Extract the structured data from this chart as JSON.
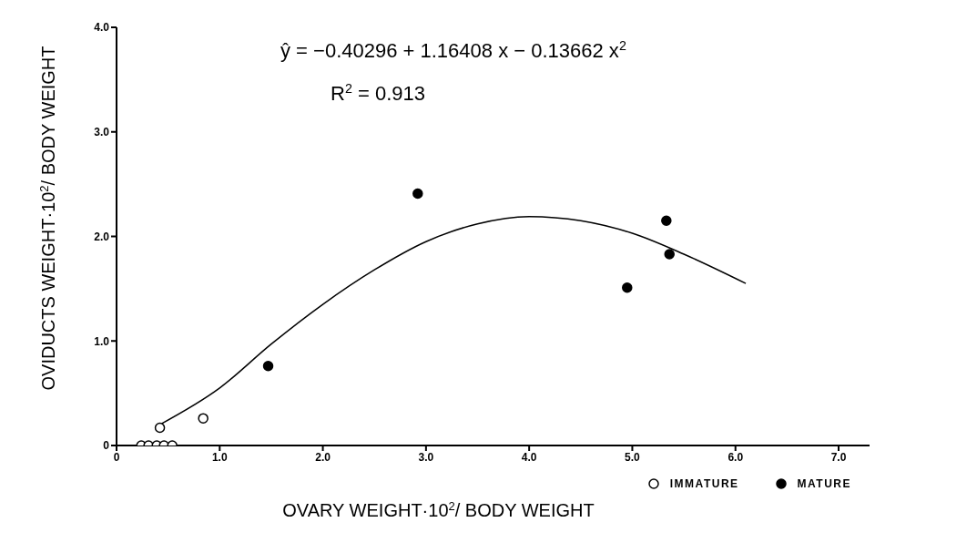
{
  "chart_data": {
    "type": "scatter",
    "xlabel": "OVARY WEIGHT·10$^{2}$/ BODY WEIGHT",
    "ylabel": "OVIDUCTS WEIGHT·10$^{2}$/ BODY WEIGHT",
    "annotations": [
      "ŷ = −0.40296 + 1.16408 x − 0.13662 x$^{2}$",
      "R$^{2}$ = 0.913"
    ],
    "xlim": [
      0,
      7.3
    ],
    "ylim": [
      0,
      4
    ],
    "xticks": [
      0,
      {
        "value": 1,
        "label": "1.0"
      },
      {
        "value": 2,
        "label": "2.0"
      },
      {
        "value": 3,
        "label": "3.0"
      },
      {
        "value": 4,
        "label": "4.0"
      },
      {
        "value": 5,
        "label": "5.0"
      },
      {
        "value": 6,
        "label": "6.0"
      },
      {
        "value": 7,
        "label": "7.0"
      }
    ],
    "yticks": [
      0,
      {
        "value": 1,
        "label": "1.0"
      },
      {
        "value": 2,
        "label": "2.0"
      },
      {
        "value": 3,
        "label": "3.0"
      },
      {
        "value": 4,
        "label": "4.0"
      }
    ],
    "grid": false,
    "legend": "bottom right",
    "marker": "circle",
    "series": [
      {
        "name": "IMMATURE",
        "color": "#ffffff",
        "x": [
          0.24,
          0.31,
          0.39,
          0.46,
          0.54,
          0.42,
          0.84
        ],
        "values": [
          0,
          0,
          0,
          0,
          0,
          0.17,
          0.26
        ]
      },
      {
        "name": "MATURE",
        "color": "#000000",
        "x": [
          1.47,
          2.92,
          4.95,
          5.33,
          5.36
        ],
        "values": [
          0.76,
          2.41,
          1.51,
          2.15,
          1.83
        ]
      },
      {
        "type": "line",
        "color": "#000000",
        "marker": "none",
        "line_style": "solid",
        "x": [
          0.42,
          1.0,
          1.5,
          2.0,
          2.5,
          3.0,
          3.5,
          4.0,
          4.5,
          5.0,
          5.5,
          6.1
        ],
        "values": [
          0.2,
          0.55,
          0.97,
          1.35,
          1.68,
          1.95,
          2.12,
          2.19,
          2.15,
          2.03,
          1.83,
          1.55
        ]
      }
    ]
  }
}
